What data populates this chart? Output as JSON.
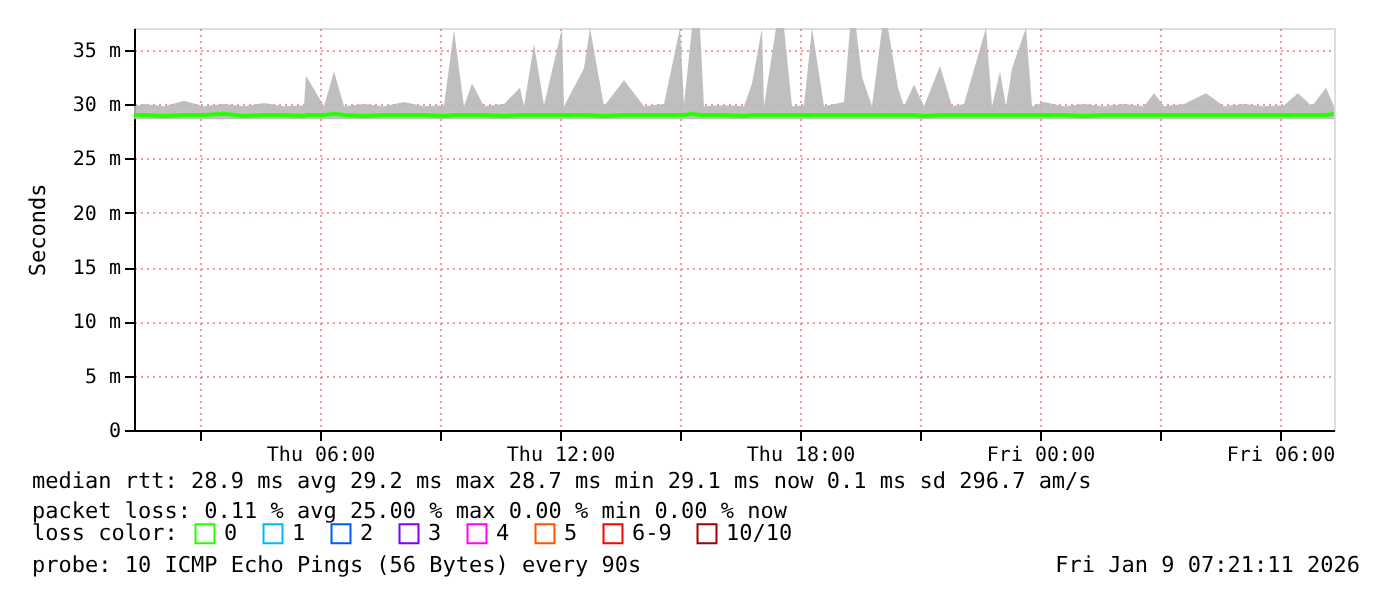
{
  "chart_data": {
    "type": "line",
    "ylabel": "Seconds",
    "legend_title": "loss color:",
    "legend": "bottom",
    "grid": true,
    "marker": "none",
    "line_style": "solid",
    "xlim": [
      "2026-01-08T01:21",
      "2026-01-09T07:21"
    ],
    "xticks": [
      {
        "value": "2026-01-08T03:00",
        "label": null
      },
      {
        "value": "2026-01-08T06:00",
        "label": "Thu 06:00"
      },
      {
        "value": "2026-01-08T09:00",
        "label": null
      },
      {
        "value": "2026-01-08T12:00",
        "label": "Thu 12:00"
      },
      {
        "value": "2026-01-08T15:00",
        "label": null
      },
      {
        "value": "2026-01-08T18:00",
        "label": "Thu 18:00"
      },
      {
        "value": "2026-01-08T21:00",
        "label": null
      },
      {
        "value": "2026-01-09T00:00",
        "label": "Fri 00:00"
      },
      {
        "value": "2026-01-09T03:00",
        "label": null
      },
      {
        "value": "2026-01-09T06:00",
        "label": "Fri 06:00"
      }
    ],
    "ylim": [
      0,
      37
    ],
    "yticks": [
      0,
      {
        "value": 5,
        "label": "5 m"
      },
      {
        "value": 10,
        "label": "10 m"
      },
      {
        "value": 15,
        "label": "15 m"
      },
      {
        "value": 20,
        "label": "20 m"
      },
      {
        "value": 25,
        "label": "25 m"
      },
      {
        "value": 30,
        "label": "30 m"
      },
      {
        "value": 35,
        "label": "35 m"
      }
    ],
    "series": [
      {
        "name": "0",
        "color": "#26ff00",
        "x": [
          "2026-01-08T01:21",
          "2026-01-08T01:36",
          "2026-01-08T02:06",
          "2026-01-08T02:36",
          "2026-01-08T03:06",
          "2026-01-08T03:36",
          "2026-01-08T04:06",
          "2026-01-08T04:36",
          "2026-01-08T05:06",
          "2026-01-08T05:36",
          "2026-01-08T05:39",
          "2026-01-08T06:06",
          "2026-01-08T06:21",
          "2026-01-08T06:36",
          "2026-01-08T07:06",
          "2026-01-08T07:36",
          "2026-01-08T08:06",
          "2026-01-08T08:36",
          "2026-01-08T09:06",
          "2026-01-08T09:21",
          "2026-01-08T09:36",
          "2026-01-08T09:48",
          "2026-01-08T10:06",
          "2026-01-08T10:36",
          "2026-01-08T11:00",
          "2026-01-08T11:06",
          "2026-01-08T11:21",
          "2026-01-08T11:36",
          "2026-01-08T12:03",
          "2026-01-08T12:06",
          "2026-01-08T12:36",
          "2026-01-08T12:45",
          "2026-01-08T13:06",
          "2026-01-08T13:36",
          "2026-01-08T14:06",
          "2026-01-08T14:36",
          "2026-01-08T15:00",
          "2026-01-08T15:06",
          "2026-01-08T15:18",
          "2026-01-08T15:30",
          "2026-01-08T15:36",
          "2026-01-08T16:06",
          "2026-01-08T16:36",
          "2026-01-08T16:48",
          "2026-01-08T17:03",
          "2026-01-08T17:06",
          "2026-01-08T17:24",
          "2026-01-08T17:36",
          "2026-01-08T17:48",
          "2026-01-08T18:06",
          "2026-01-08T18:18",
          "2026-01-08T18:36",
          "2026-01-08T19:06",
          "2026-01-08T19:15",
          "2026-01-08T19:24",
          "2026-01-08T19:33",
          "2026-01-08T19:48",
          "2026-01-08T20:03",
          "2026-01-08T20:12",
          "2026-01-08T20:27",
          "2026-01-08T20:36",
          "2026-01-08T20:51",
          "2026-01-08T21:06",
          "2026-01-08T21:30",
          "2026-01-08T21:48",
          "2026-01-08T22:06",
          "2026-01-08T22:39",
          "2026-01-08T22:48",
          "2026-01-08T23:00",
          "2026-01-08T23:09",
          "2026-01-08T23:18",
          "2026-01-08T23:39",
          "2026-01-08T23:48",
          "2026-01-09T00:06",
          "2026-01-09T00:36",
          "2026-01-09T01:06",
          "2026-01-09T01:36",
          "2026-01-09T02:06",
          "2026-01-09T02:36",
          "2026-01-09T02:51",
          "2026-01-09T03:06",
          "2026-01-09T03:36",
          "2026-01-09T04:09",
          "2026-01-09T04:36",
          "2026-01-09T05:06",
          "2026-01-09T05:36",
          "2026-01-09T06:06",
          "2026-01-09T06:27",
          "2026-01-09T06:48",
          "2026-01-09T07:09",
          "2026-01-09T07:21"
        ],
        "values": [
          29.0,
          29.0,
          28.9,
          29.0,
          29.0,
          29.1,
          28.9,
          29.0,
          29.0,
          28.9,
          29.0,
          29.0,
          29.1,
          29.0,
          28.9,
          29.0,
          29.0,
          29.0,
          28.9,
          29.0,
          29.0,
          29.0,
          29.0,
          28.9,
          29.0,
          29.0,
          29.0,
          29.0,
          29.0,
          29.0,
          29.0,
          29.0,
          28.9,
          29.0,
          29.0,
          29.0,
          29.0,
          29.0,
          29.1,
          29.0,
          29.0,
          29.0,
          28.9,
          29.0,
          29.0,
          29.0,
          29.0,
          29.0,
          29.0,
          29.0,
          29.0,
          29.0,
          29.0,
          29.0,
          29.0,
          29.0,
          29.0,
          29.0,
          29.0,
          29.0,
          29.0,
          29.0,
          28.9,
          29.0,
          29.0,
          29.0,
          29.0,
          29.0,
          29.0,
          29.0,
          29.0,
          29.0,
          29.0,
          29.0,
          29.0,
          28.9,
          29.0,
          29.0,
          29.0,
          29.0,
          29.0,
          29.0,
          29.0,
          29.0,
          29.0,
          29.0,
          29.0,
          29.0,
          29.0,
          29.0,
          29.1
        ],
        "lower": [
          28.6,
          28.6,
          28.6,
          28.6,
          28.6,
          28.6,
          28.6,
          28.6,
          28.6,
          28.6,
          28.6,
          28.6,
          28.6,
          28.6,
          28.6,
          28.6,
          28.6,
          28.6,
          28.6,
          28.6,
          28.6,
          28.6,
          28.6,
          28.6,
          28.6,
          28.6,
          28.6,
          28.6,
          28.6,
          28.6,
          28.6,
          28.6,
          28.6,
          28.6,
          28.6,
          28.6,
          28.6,
          28.6,
          28.6,
          28.6,
          28.6,
          28.6,
          28.6,
          28.6,
          28.6,
          28.6,
          28.6,
          28.6,
          28.6,
          28.6,
          28.6,
          28.6,
          28.6,
          28.6,
          28.6,
          28.6,
          28.6,
          28.6,
          28.6,
          28.6,
          28.6,
          28.6,
          28.6,
          28.6,
          28.6,
          28.6,
          28.6,
          28.6,
          28.6,
          28.6,
          28.6,
          28.6,
          28.6,
          28.6,
          28.6,
          28.6,
          28.6,
          28.6,
          28.6,
          28.6,
          28.6,
          28.6,
          28.6,
          28.6,
          28.6,
          28.6,
          28.6,
          28.6,
          28.6,
          28.6,
          28.6
        ],
        "upper": [
          29.8,
          30.0,
          29.8,
          30.3,
          29.8,
          30.0,
          29.8,
          30.1,
          29.8,
          29.9,
          32.6,
          29.8,
          33.0,
          29.8,
          30.0,
          29.8,
          30.2,
          29.8,
          29.9,
          36.8,
          29.8,
          31.9,
          29.8,
          30.0,
          31.5,
          29.8,
          35.5,
          29.9,
          37.0,
          29.8,
          33.3,
          37.0,
          29.8,
          32.2,
          29.8,
          30.0,
          37.0,
          30.0,
          37.0,
          37.0,
          29.8,
          29.9,
          29.8,
          31.9,
          37.0,
          29.8,
          37.0,
          37.0,
          29.8,
          29.9,
          37.0,
          29.8,
          30.2,
          37.0,
          37.0,
          32.5,
          29.8,
          37.0,
          37.0,
          31.5,
          29.8,
          31.8,
          29.8,
          33.5,
          29.8,
          30.0,
          37.0,
          29.8,
          33.0,
          29.8,
          33.3,
          37.0,
          29.8,
          30.2,
          29.8,
          30.0,
          29.8,
          30.0,
          29.8,
          31.0,
          29.8,
          30.0,
          31.0,
          29.8,
          30.0,
          29.8,
          29.9,
          31.0,
          29.8,
          31.5,
          29.8
        ]
      },
      {
        "name": "1",
        "color": "#00b8ff"
      },
      {
        "name": "2",
        "color": "#0059ff"
      },
      {
        "name": "3",
        "color": "#7e00ff"
      },
      {
        "name": "4",
        "color": "#ff00ff"
      },
      {
        "name": "5",
        "color": "#ff5500"
      },
      {
        "name": "6-9",
        "color": "#ff0000"
      },
      {
        "name": "10/10",
        "color": "#a10000"
      }
    ],
    "annotations": [
      "median rtt:  28.9 ms avg  29.2 ms max  28.7 ms min  29.1 ms now  0.1 ms sd  296.7   am/s",
      "packet loss: 0.11 % avg  25.00 % max  0.00 % min  0.00 % now",
      "probe:       10 ICMP Echo Pings (56 Bytes) every 90s",
      "Fri Jan  9 07:21:11 2026"
    ]
  }
}
